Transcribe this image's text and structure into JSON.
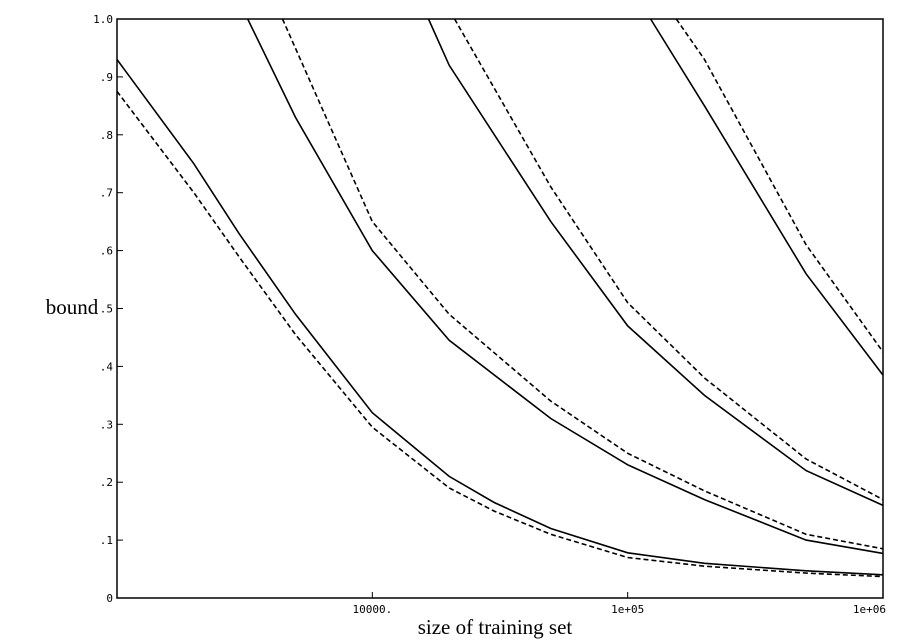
{
  "chart_data": {
    "type": "line",
    "xlabel": "size of training set",
    "ylabel": "bound",
    "xscale": "log",
    "xlim": [
      1000,
      1000000
    ],
    "ylim": [
      0,
      1
    ],
    "xticks": [
      {
        "value": 10000,
        "label": "10000."
      },
      {
        "value": 100000,
        "label": "1e+05"
      },
      {
        "value": 1000000,
        "label": "1e+06"
      }
    ],
    "yticks": [
      {
        "value": 0,
        "label": "0"
      },
      {
        "value": 0.1,
        "label": ".1"
      },
      {
        "value": 0.2,
        "label": ".2"
      },
      {
        "value": 0.3,
        "label": ".3"
      },
      {
        "value": 0.4,
        "label": ".4"
      },
      {
        "value": 0.5,
        "label": ".5"
      },
      {
        "value": 0.6,
        "label": ".6"
      },
      {
        "value": 0.7,
        "label": ".7"
      },
      {
        "value": 0.8,
        "label": ".8"
      },
      {
        "value": 0.9,
        "label": ".9"
      },
      {
        "value": 1,
        "label": "1.0"
      }
    ],
    "series": [
      {
        "color": "#000000",
        "dashed": false,
        "x": [
          1000,
          2000,
          3000,
          5000,
          10000,
          20000,
          30000,
          50000,
          100000,
          200000,
          500000,
          1000000
        ],
        "values": [
          0.93,
          0.75,
          0.63,
          0.49,
          0.32,
          0.21,
          0.165,
          0.12,
          0.078,
          0.06,
          0.047,
          0.04
        ]
      },
      {
        "color": "#000000",
        "dashed": true,
        "x": [
          1000,
          2000,
          3000,
          5000,
          10000,
          20000,
          30000,
          50000,
          100000,
          200000,
          500000,
          1000000
        ],
        "values": [
          0.875,
          0.7,
          0.59,
          0.455,
          0.295,
          0.19,
          0.15,
          0.11,
          0.07,
          0.055,
          0.043,
          0.037
        ]
      },
      {
        "color": "#000000",
        "dashed": false,
        "x": [
          3250,
          5000,
          10000,
          20000,
          50000,
          100000,
          200000,
          500000,
          1000000
        ],
        "values": [
          1,
          0.83,
          0.6,
          0.445,
          0.31,
          0.23,
          0.17,
          0.1,
          0.077
        ]
      },
      {
        "color": "#000000",
        "dashed": true,
        "x": [
          4450,
          10000,
          20000,
          50000,
          100000,
          200000,
          500000,
          1000000
        ],
        "values": [
          1,
          0.65,
          0.49,
          0.34,
          0.25,
          0.185,
          0.11,
          0.085
        ]
      },
      {
        "color": "#000000",
        "dashed": false,
        "x": [
          16600,
          20000,
          50000,
          100000,
          200000,
          500000,
          1000000
        ],
        "values": [
          1,
          0.92,
          0.65,
          0.47,
          0.35,
          0.22,
          0.16
        ]
      },
      {
        "color": "#000000",
        "dashed": true,
        "x": [
          21000,
          50000,
          100000,
          200000,
          500000,
          1000000
        ],
        "values": [
          1,
          0.71,
          0.51,
          0.38,
          0.24,
          0.17
        ]
      },
      {
        "color": "#000000",
        "dashed": false,
        "x": [
          123000,
          200000,
          500000,
          1000000
        ],
        "values": [
          1,
          0.85,
          0.56,
          0.385
        ]
      },
      {
        "color": "#000000",
        "dashed": true,
        "x": [
          155000,
          200000,
          500000,
          1000000
        ],
        "values": [
          1,
          0.93,
          0.61,
          0.425
        ]
      }
    ]
  }
}
